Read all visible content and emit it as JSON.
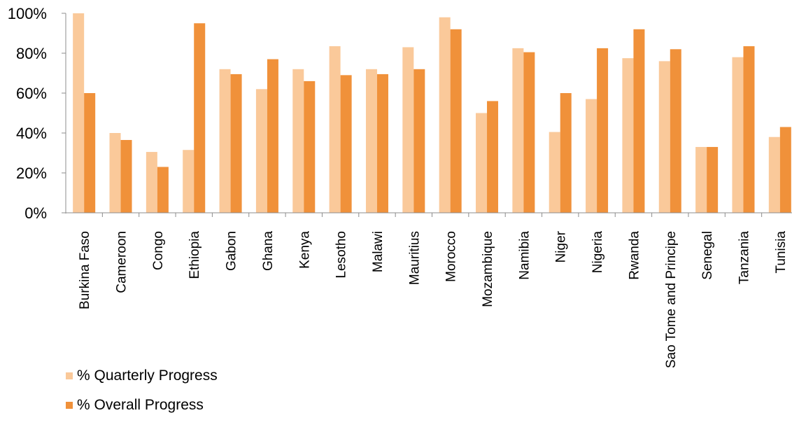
{
  "chart_data": {
    "type": "bar",
    "categories": [
      "Burkina Faso",
      "Cameroon",
      "Congo",
      "Ethiopia",
      "Gabon",
      "Ghana",
      "Kenya",
      "Lesotho",
      "Malawi",
      "Mauritius",
      "Morocco",
      "Mozambique",
      "Namibia",
      "Niger",
      "Nigeria",
      "Rwanda",
      "Sao Tome and Principe",
      "Senegal",
      "Tanzania",
      "Tunisia"
    ],
    "series": [
      {
        "name": "% Quarterly Progress",
        "color": "#fac99a",
        "values": [
          100,
          40,
          30.5,
          31.5,
          72,
          62,
          72,
          83.5,
          72,
          83,
          98,
          50,
          82.5,
          40.5,
          57,
          77.5,
          76,
          33,
          78,
          38
        ]
      },
      {
        "name": "% Overall Progress",
        "color": "#f0913a",
        "values": [
          60,
          36.5,
          23,
          95,
          69.5,
          77,
          66,
          69,
          69.5,
          72,
          92,
          56,
          80.5,
          60,
          82.5,
          92,
          82,
          33,
          83.5,
          43
        ]
      }
    ],
    "ylim": [
      0,
      100
    ],
    "yticks": [
      0,
      20,
      40,
      60,
      80,
      100
    ],
    "ytick_labels": [
      "0%",
      "20%",
      "40%",
      "60%",
      "80%",
      "100%"
    ],
    "title": "",
    "xlabel": "",
    "ylabel": "",
    "legend_position": "bottom-left",
    "grid": false
  }
}
